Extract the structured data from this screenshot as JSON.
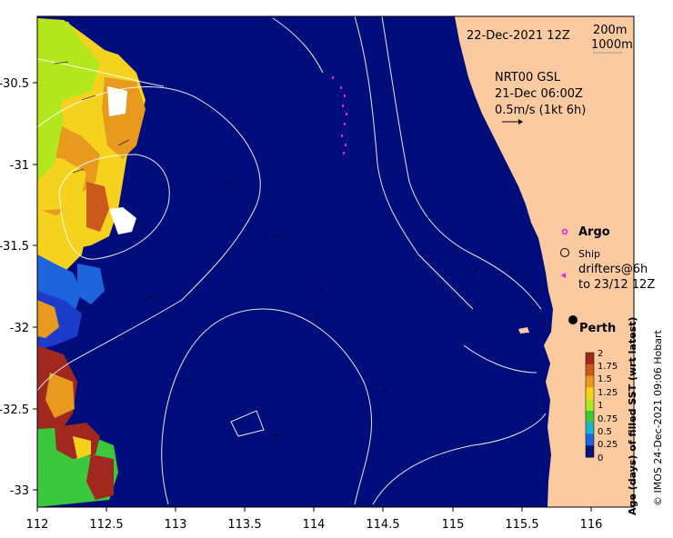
{
  "map": {
    "date_label": "22-Dec-2021 12Z",
    "depth_labels": [
      "200m",
      "1000m"
    ],
    "current_title": [
      "NRT00 GSL",
      "21-Dec 06:00Z",
      "0.5m/s (1kt 6h)"
    ],
    "legend": {
      "argo": "Argo",
      "ship": "Ship",
      "drifters_line1": "drifters@6h",
      "drifters_line2": "to 23/12 12Z"
    },
    "city": "Perth",
    "x_ticks": [
      "112",
      "112.5",
      "113",
      "113.5",
      "114",
      "114.5",
      "115",
      "115.5",
      "116"
    ],
    "y_ticks": [
      "-30.5",
      "-31",
      "-31.5",
      "-32",
      "-32.5",
      "-33"
    ],
    "colorbar": {
      "label": "Age (days) of filled SST (wrt latest)",
      "ticks": [
        "2",
        "1.75",
        "1.5",
        "1.25",
        "1",
        "0.75",
        "0.5",
        "0.25",
        "0"
      ],
      "colors": [
        "#a0281e",
        "#cc5a1e",
        "#e89a1e",
        "#f5d21e",
        "#b4e61e",
        "#3cc83c",
        "#1eb4c8",
        "#1e64dc",
        "#0a1478"
      ]
    },
    "credit": "© IMOS 24-Dec-2021 09:06 Hobart",
    "colors": {
      "ocean": "#000d7a",
      "land": "#fbcaa0",
      "argo": "#e61ee6"
    }
  }
}
